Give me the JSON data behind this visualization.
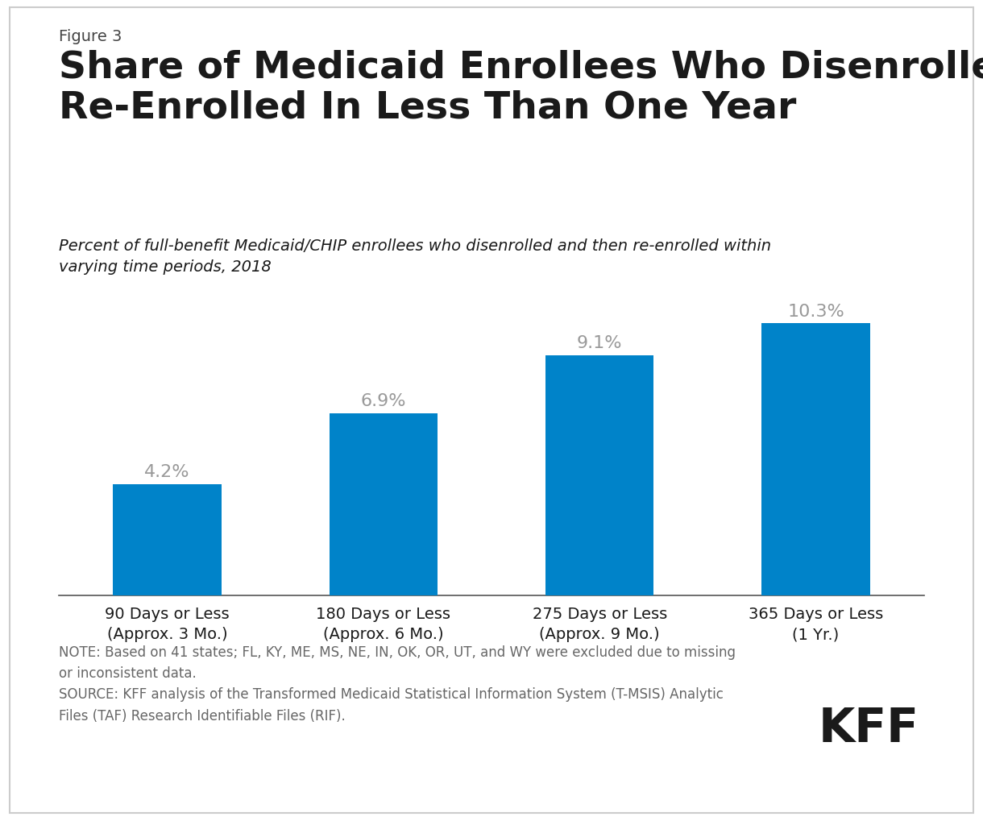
{
  "figure_label": "Figure 3",
  "title": "Share of Medicaid Enrollees Who Disenrolled Then\nRe-Enrolled In Less Than One Year",
  "subtitle": "Percent of full-benefit Medicaid/CHIP enrollees who disenrolled and then re-enrolled within\nvarying time periods, 2018",
  "categories": [
    "90 Days or Less\n(Approx. 3 Mo.)",
    "180 Days or Less\n(Approx. 6 Mo.)",
    "275 Days or Less\n(Approx. 9 Mo.)",
    "365 Days or Less\n(1 Yr.)"
  ],
  "values": [
    4.2,
    6.9,
    9.1,
    10.3
  ],
  "labels": [
    "4.2%",
    "6.9%",
    "9.1%",
    "10.3%"
  ],
  "bar_color": "#0083c9",
  "label_color": "#999999",
  "background_color": "#ffffff",
  "border_color": "#cccccc",
  "text_dark": "#1a1a1a",
  "text_mid": "#444444",
  "text_note": "#666666",
  "ylim": [
    0,
    12
  ],
  "note_text": "NOTE: Based on 41 states; FL, KY, ME, MS, NE, IN, OK, OR, UT, and WY were excluded due to missing\nor inconsistent data.\nSOURCE: KFF analysis of the Transformed Medicaid Statistical Information System (T-MSIS) Analytic\nFiles (TAF) Research Identifiable Files (RIF).",
  "kff_text": "KFF",
  "figure_label_fontsize": 14,
  "title_fontsize": 34,
  "subtitle_fontsize": 14,
  "bar_label_fontsize": 16,
  "tick_label_fontsize": 14,
  "note_fontsize": 12,
  "kff_fontsize": 42
}
